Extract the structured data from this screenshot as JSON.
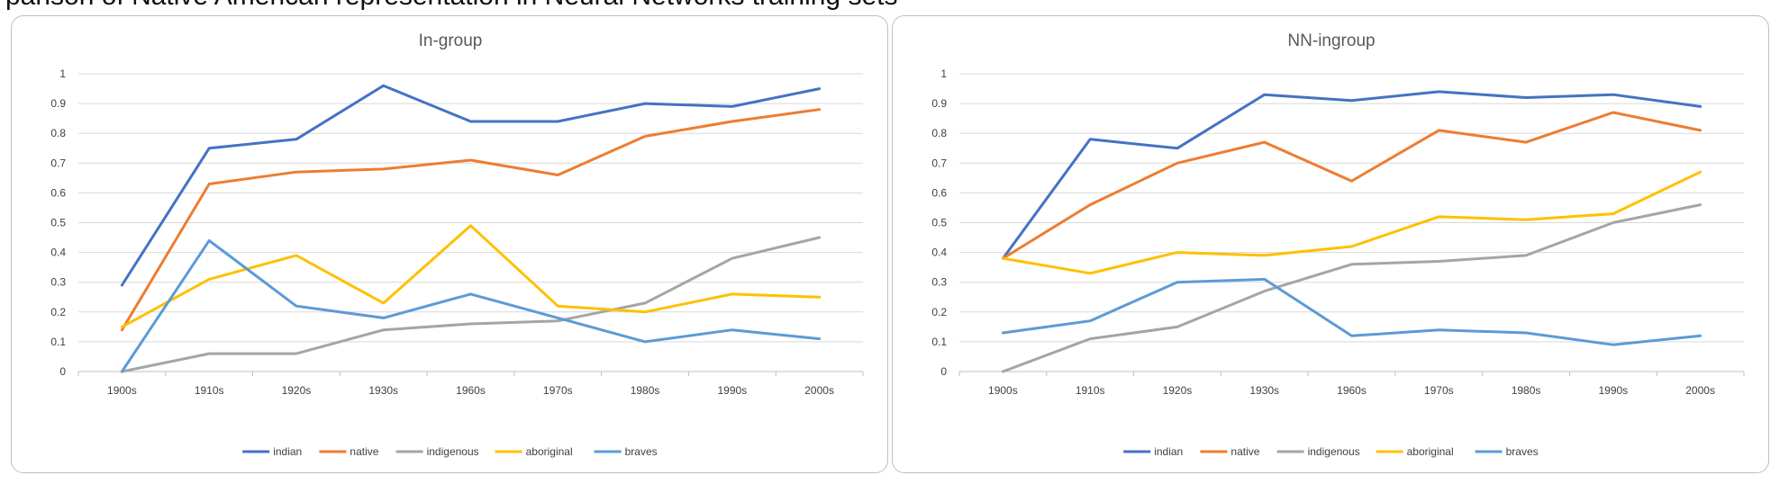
{
  "page": {
    "cutoff_text": "parison of Native American representation in Neural Networks training sets"
  },
  "chart_data": [
    {
      "type": "line",
      "title": "In-group",
      "categories": [
        "1900s",
        "1910s",
        "1920s",
        "1930s",
        "1960s",
        "1970s",
        "1980s",
        "1990s",
        "2000s"
      ],
      "ylim": [
        0,
        1
      ],
      "yticks": [
        "0",
        "0.1",
        "0.2",
        "0.3",
        "0.4",
        "0.5",
        "0.6",
        "0.7",
        "0.8",
        "0.9",
        "1"
      ],
      "grid": true,
      "legend_position": "bottom",
      "series": [
        {
          "name": "indian",
          "color": "#4472c4",
          "values": [
            0.29,
            0.75,
            0.78,
            0.96,
            0.84,
            0.84,
            0.9,
            0.89,
            0.95
          ]
        },
        {
          "name": "native",
          "color": "#ed7d31",
          "values": [
            0.14,
            0.63,
            0.67,
            0.68,
            0.71,
            0.66,
            0.79,
            0.84,
            0.88
          ]
        },
        {
          "name": "indigenous",
          "color": "#a5a5a5",
          "values": [
            0.0,
            0.06,
            0.06,
            0.14,
            0.16,
            0.17,
            0.23,
            0.38,
            0.45
          ]
        },
        {
          "name": "aboriginal",
          "color": "#ffc000",
          "values": [
            0.15,
            0.31,
            0.39,
            0.23,
            0.49,
            0.22,
            0.2,
            0.26,
            0.25
          ]
        },
        {
          "name": "braves",
          "color": "#5b9bd5",
          "values": [
            0.0,
            0.44,
            0.22,
            0.18,
            0.26,
            0.18,
            0.1,
            0.14,
            0.11
          ]
        }
      ]
    },
    {
      "type": "line",
      "title": "NN-ingroup",
      "categories": [
        "1900s",
        "1910s",
        "1920s",
        "1930s",
        "1960s",
        "1970s",
        "1980s",
        "1990s",
        "2000s"
      ],
      "ylim": [
        0,
        1
      ],
      "yticks": [
        "0",
        "0.1",
        "0.2",
        "0.3",
        "0.4",
        "0.5",
        "0.6",
        "0.7",
        "0.8",
        "0.9",
        "1"
      ],
      "grid": true,
      "legend_position": "bottom",
      "series": [
        {
          "name": "indian",
          "color": "#4472c4",
          "values": [
            0.38,
            0.78,
            0.75,
            0.93,
            0.91,
            0.94,
            0.92,
            0.93,
            0.89
          ]
        },
        {
          "name": "native",
          "color": "#ed7d31",
          "values": [
            0.38,
            0.56,
            0.7,
            0.77,
            0.64,
            0.81,
            0.77,
            0.87,
            0.81
          ]
        },
        {
          "name": "indigenous",
          "color": "#a5a5a5",
          "values": [
            0.0,
            0.11,
            0.15,
            0.27,
            0.36,
            0.37,
            0.39,
            0.5,
            0.56
          ]
        },
        {
          "name": "aboriginal",
          "color": "#ffc000",
          "values": [
            0.38,
            0.33,
            0.4,
            0.39,
            0.42,
            0.52,
            0.51,
            0.53,
            0.67
          ]
        },
        {
          "name": "braves",
          "color": "#5b9bd5",
          "values": [
            0.13,
            0.17,
            0.3,
            0.31,
            0.12,
            0.14,
            0.13,
            0.09,
            0.12
          ]
        }
      ]
    }
  ]
}
